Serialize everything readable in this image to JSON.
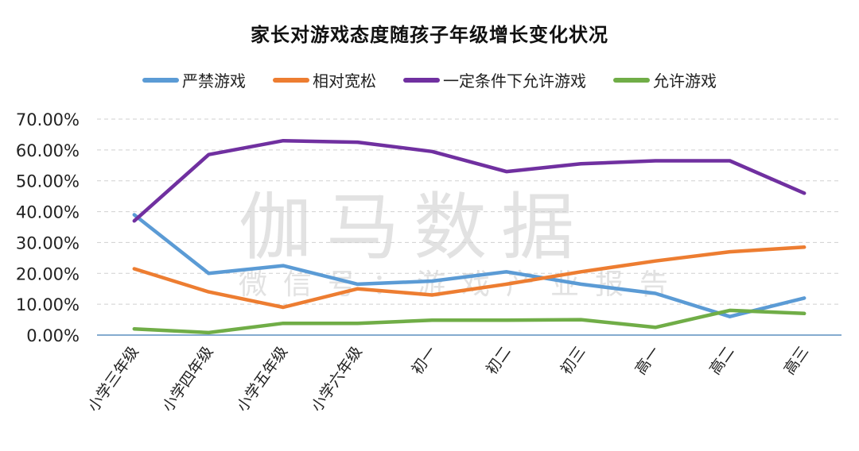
{
  "chart_data": {
    "type": "line",
    "title": "家长对游戏态度随孩子年级增长变化状况",
    "xlabel": "",
    "ylabel": "",
    "ylim": [
      0,
      70
    ],
    "yticks": [
      "0.00%",
      "10.00%",
      "20.00%",
      "30.00%",
      "40.00%",
      "50.00%",
      "60.00%",
      "70.00%"
    ],
    "grid": true,
    "legend_position": "top",
    "categories": [
      "小学三年级",
      "小学四年级",
      "小学五年级",
      "小学六年级",
      "初一",
      "初二",
      "初三",
      "高一",
      "高二",
      "高三"
    ],
    "series": [
      {
        "name": "严禁游戏",
        "color": "#5b9bd5",
        "values": [
          39.0,
          20.0,
          22.5,
          16.5,
          17.5,
          20.5,
          16.5,
          13.5,
          6.0,
          12.0
        ]
      },
      {
        "name": "相对宽松",
        "color": "#ed7d31",
        "values": [
          21.5,
          14.0,
          9.0,
          15.0,
          13.0,
          16.5,
          20.5,
          24.0,
          27.0,
          28.5
        ]
      },
      {
        "name": "一定条件下允许游戏",
        "color": "#7030a0",
        "values": [
          37.0,
          58.5,
          63.0,
          62.5,
          59.5,
          53.0,
          55.5,
          56.5,
          56.5,
          46.0
        ]
      },
      {
        "name": "允许游戏",
        "color": "#70ad47",
        "values": [
          2.0,
          0.8,
          3.8,
          3.8,
          4.8,
          4.8,
          5.0,
          2.5,
          8.0,
          7.0
        ]
      }
    ],
    "watermark": {
      "main": "伽马数据",
      "sub": "微信号：游戏产业报告"
    }
  }
}
